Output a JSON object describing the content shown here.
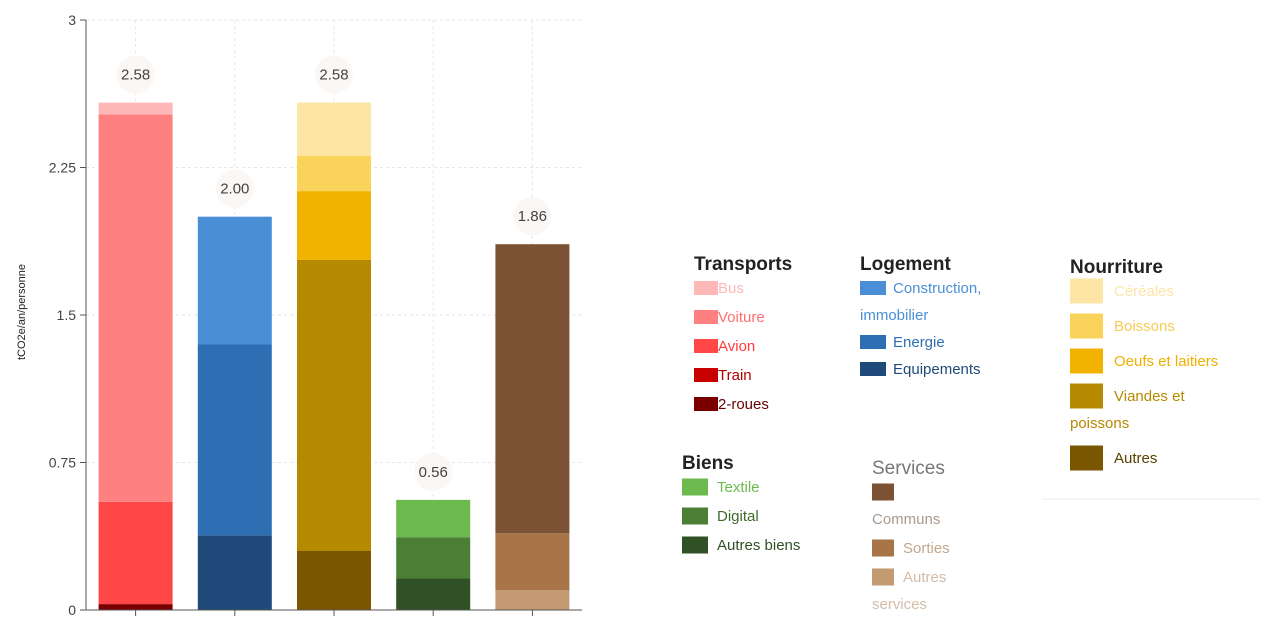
{
  "chart_data": {
    "type": "bar",
    "stacked": true,
    "ylabel": "tCO2e/an/personne",
    "ylim": [
      0,
      3
    ],
    "yticks": [
      "0",
      "0.75",
      "1.5",
      "2.25",
      "3"
    ],
    "ytick_values": [
      0,
      0.75,
      1.5,
      2.25,
      3
    ],
    "grid": true,
    "legend_placement": "right",
    "categories": [
      "Transports",
      "Logement",
      "Nourriture",
      "Biens",
      "Services"
    ],
    "totals": [
      "2.58",
      "2.00",
      "2.58",
      "0.56",
      "1.86"
    ],
    "bars": [
      {
        "category": "Transports",
        "segments": [
          {
            "name": "2-roues",
            "value": 0.03,
            "color": "#7a0000"
          },
          {
            "name": "Train",
            "value": 0.0,
            "color": "#c80000"
          },
          {
            "name": "Avion",
            "value": 0.52,
            "color": "#ff4747"
          },
          {
            "name": "Voiture",
            "value": 1.97,
            "color": "#ff8080"
          },
          {
            "name": "Bus",
            "value": 0.06,
            "color": "#ffb8b8"
          }
        ]
      },
      {
        "category": "Logement",
        "segments": [
          {
            "name": "Equipements",
            "value": 0.38,
            "color": "#1f4a7a"
          },
          {
            "name": "Energie",
            "value": 0.97,
            "color": "#2e6fb4"
          },
          {
            "name": "Construction, immobilier",
            "value": 0.65,
            "color": "#4a8fd6"
          }
        ]
      },
      {
        "category": "Nourriture",
        "segments": [
          {
            "name": "Autres",
            "value": 0.3,
            "color": "#7a5600"
          },
          {
            "name": "Viandes et poissons",
            "value": 1.48,
            "color": "#b68a00"
          },
          {
            "name": "Oeufs et laitiers",
            "value": 0.35,
            "color": "#f2b200"
          },
          {
            "name": "Boissons",
            "value": 0.18,
            "color": "#fad35a"
          },
          {
            "name": "Céréales",
            "value": 0.27,
            "color": "#fde5a6"
          }
        ]
      },
      {
        "category": "Biens",
        "segments": [
          {
            "name": "Autres biens",
            "value": 0.16,
            "color": "#2f5125"
          },
          {
            "name": "Digital",
            "value": 0.21,
            "color": "#4b7f35"
          },
          {
            "name": "Textile",
            "value": 0.19,
            "color": "#6cb94e"
          }
        ]
      },
      {
        "category": "Services",
        "segments": [
          {
            "name": "Autres services",
            "value": 0.1,
            "color": "#c49a73"
          },
          {
            "name": "Sorties",
            "value": 0.29,
            "color": "#a77548"
          },
          {
            "name": "Communs",
            "value": 1.47,
            "color": "#7b5234"
          }
        ]
      }
    ]
  },
  "legend": {
    "groups": [
      {
        "title": "Transports",
        "title_style": "bold",
        "items": [
          {
            "label": "Bus",
            "color": "#ffb8b8",
            "text_color": "#ffb8b8"
          },
          {
            "label": "Voiture",
            "color": "#ff8080",
            "text_color": "#ff7070"
          },
          {
            "label": "Avion",
            "color": "#ff4747",
            "text_color": "#ff3b3b"
          },
          {
            "label": "Train",
            "color": "#c80000",
            "text_color": "#b00000"
          },
          {
            "label": "2-roues",
            "color": "#7a0000",
            "text_color": "#6a0000"
          }
        ]
      },
      {
        "title": "Logement",
        "title_style": "bold",
        "items": [
          {
            "label": "Construction,",
            "label2": "immobilier",
            "color": "#4a8fd6",
            "text_color": "#4a8fd6"
          },
          {
            "label": "Energie",
            "color": "#2e6fb4",
            "text_color": "#2e6fb4"
          },
          {
            "label": "Equipements",
            "color": "#1f4a7a",
            "text_color": "#1f4a7a"
          }
        ]
      },
      {
        "title": "Nourriture",
        "title_style": "bold",
        "items": [
          {
            "label": "Céréales",
            "color": "#fde5a6",
            "text_color": "#fde5a6"
          },
          {
            "label": "Boissons",
            "color": "#fad35a",
            "text_color": "#f6cb55"
          },
          {
            "label": "Oeufs et laitiers",
            "color": "#f2b200",
            "text_color": "#f0b000"
          },
          {
            "label": "Viandes et",
            "label2": "poissons",
            "color": "#b68a00",
            "text_color": "#b68a00"
          },
          {
            "label": "Autres",
            "color": "#7a5600",
            "text_color": "#5a4000"
          }
        ]
      },
      {
        "title": "Biens",
        "title_style": "bold",
        "items": [
          {
            "label": "Textile",
            "color": "#6cb94e",
            "text_color": "#6cb94e"
          },
          {
            "label": "Digital",
            "color": "#4b7f35",
            "text_color": "#3f6a2c"
          },
          {
            "label": "Autres biens",
            "color": "#2f5125",
            "text_color": "#2f5125"
          }
        ]
      },
      {
        "title": "Services",
        "title_style": "light",
        "items": [
          {
            "label": "",
            "label2": "Communs",
            "color": "#7b5234",
            "text_color": "#a99a8f"
          },
          {
            "label": "Sorties",
            "color": "#a77548",
            "text_color": "#c4a78c"
          },
          {
            "label": "Autres",
            "label2": "services",
            "color": "#c49a73",
            "text_color": "#d2bca7"
          }
        ]
      }
    ]
  }
}
